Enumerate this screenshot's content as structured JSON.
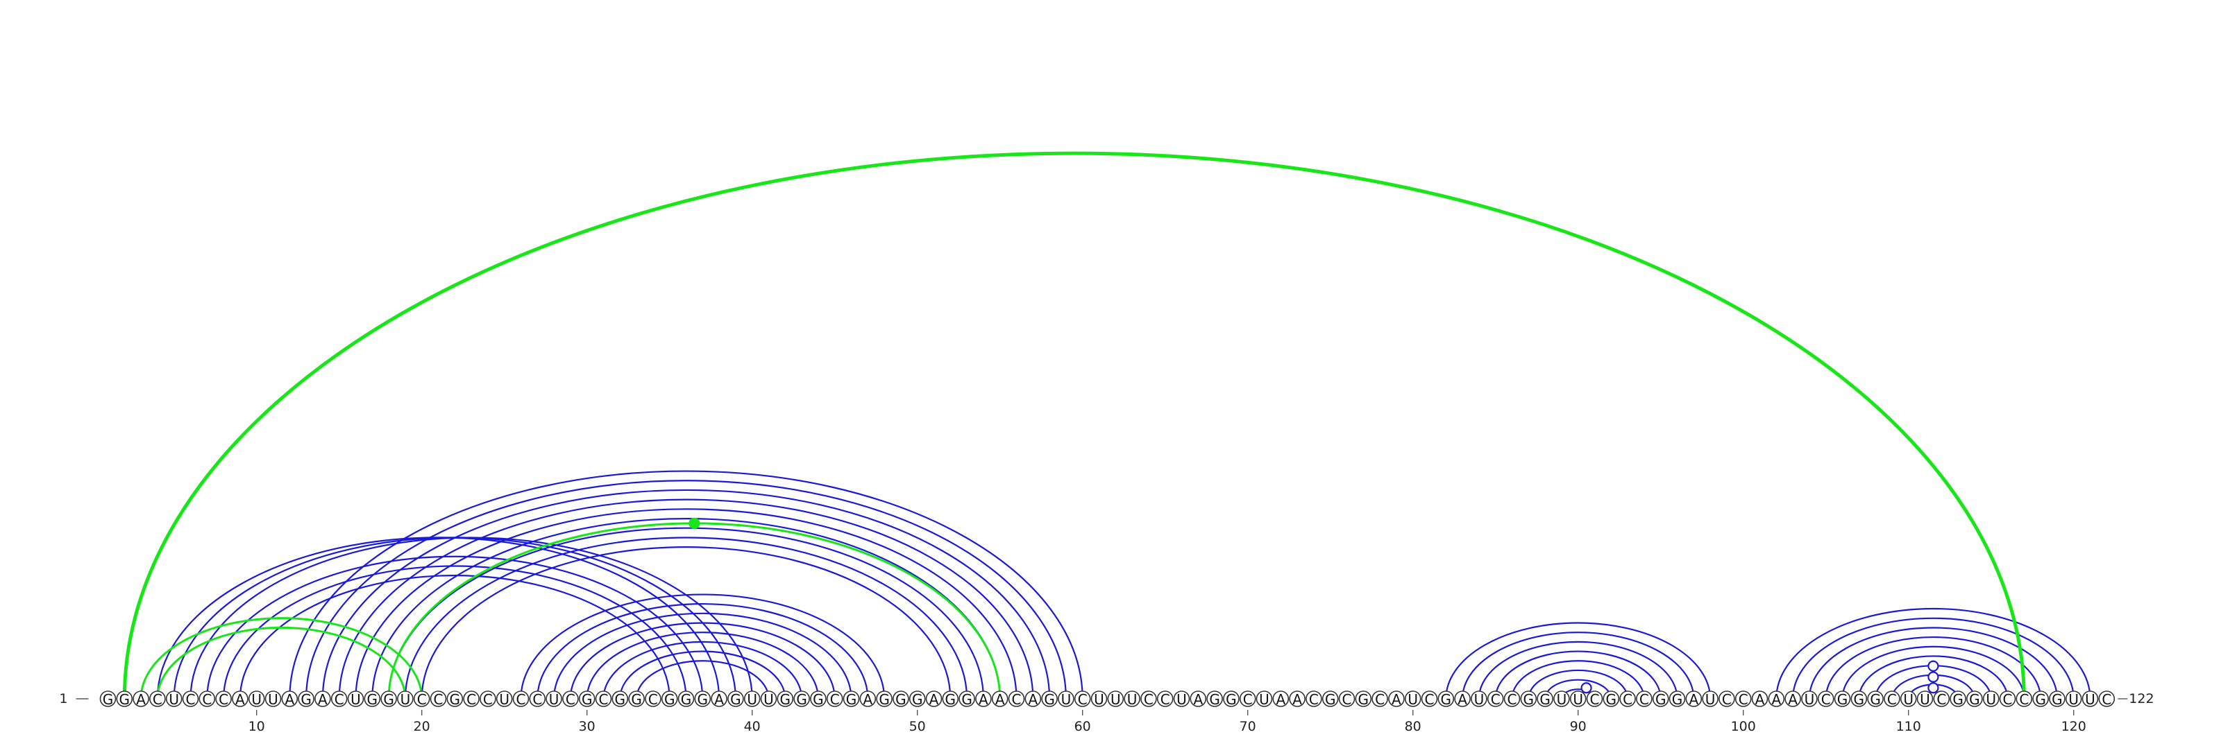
{
  "sequence": "GGACUCCCAUUAGACUGGUCCGCCUCCUCGCGGCGGGAGUUGGGCGAGGGAGGAACAGUCUUUCCUAGGCUAACGCGCAUCGAUCCGGUUCGCCGGAUCCAAAUCGGGCUUCGGUCCGGUUC",
  "start_label": "1",
  "end_label": "122",
  "ticks": [
    "10",
    "20",
    "30",
    "40",
    "50",
    "60",
    "70",
    "80",
    "90",
    "100",
    "110",
    "120"
  ],
  "colors": {
    "blue": "#1a1ad6",
    "green": "#19e619",
    "outline": "#333333"
  },
  "arcs": {
    "blue": [
      [
        4,
        38
      ],
      [
        5,
        39
      ],
      [
        6,
        40
      ],
      [
        7,
        37
      ],
      [
        8,
        36
      ],
      [
        9,
        35
      ],
      [
        12,
        60
      ],
      [
        13,
        59
      ],
      [
        14,
        58
      ],
      [
        15,
        57
      ],
      [
        16,
        56
      ],
      [
        17,
        55
      ],
      [
        18,
        54
      ],
      [
        19,
        53
      ],
      [
        20,
        52
      ],
      [
        26,
        48
      ],
      [
        27,
        47
      ],
      [
        28,
        46
      ],
      [
        29,
        45
      ],
      [
        30,
        44
      ],
      [
        31,
        43
      ],
      [
        32,
        42
      ],
      [
        33,
        41
      ],
      [
        82,
        98
      ],
      [
        83,
        97
      ],
      [
        84,
        96
      ],
      [
        85,
        95
      ],
      [
        86,
        94
      ],
      [
        87,
        93
      ],
      [
        88,
        92
      ],
      [
        89,
        91
      ],
      [
        102,
        121
      ],
      [
        103,
        120
      ],
      [
        104,
        119
      ],
      [
        105,
        118
      ],
      [
        106,
        117
      ],
      [
        107,
        116
      ],
      [
        108,
        115
      ],
      [
        109,
        114
      ],
      [
        110,
        113
      ]
    ],
    "green": [
      [
        3,
        20
      ],
      [
        4,
        19
      ],
      [
        18,
        55
      ]
    ],
    "green_thick": [
      [
        2,
        117
      ]
    ]
  },
  "markers": [
    {
      "position": 36.5,
      "depth": 2,
      "type": "filled",
      "color": "#19e619"
    },
    {
      "position": 90.5,
      "depth": 1,
      "type": "open",
      "color": "#1a1ad6"
    },
    {
      "position": 111.5,
      "depth": 1,
      "type": "open",
      "color": "#1a1ad6"
    },
    {
      "position": 111.5,
      "depth": 2,
      "type": "open",
      "color": "#1a1ad6"
    },
    {
      "position": 111.5,
      "depth": 3,
      "type": "open",
      "color": "#1a1ad6"
    }
  ]
}
